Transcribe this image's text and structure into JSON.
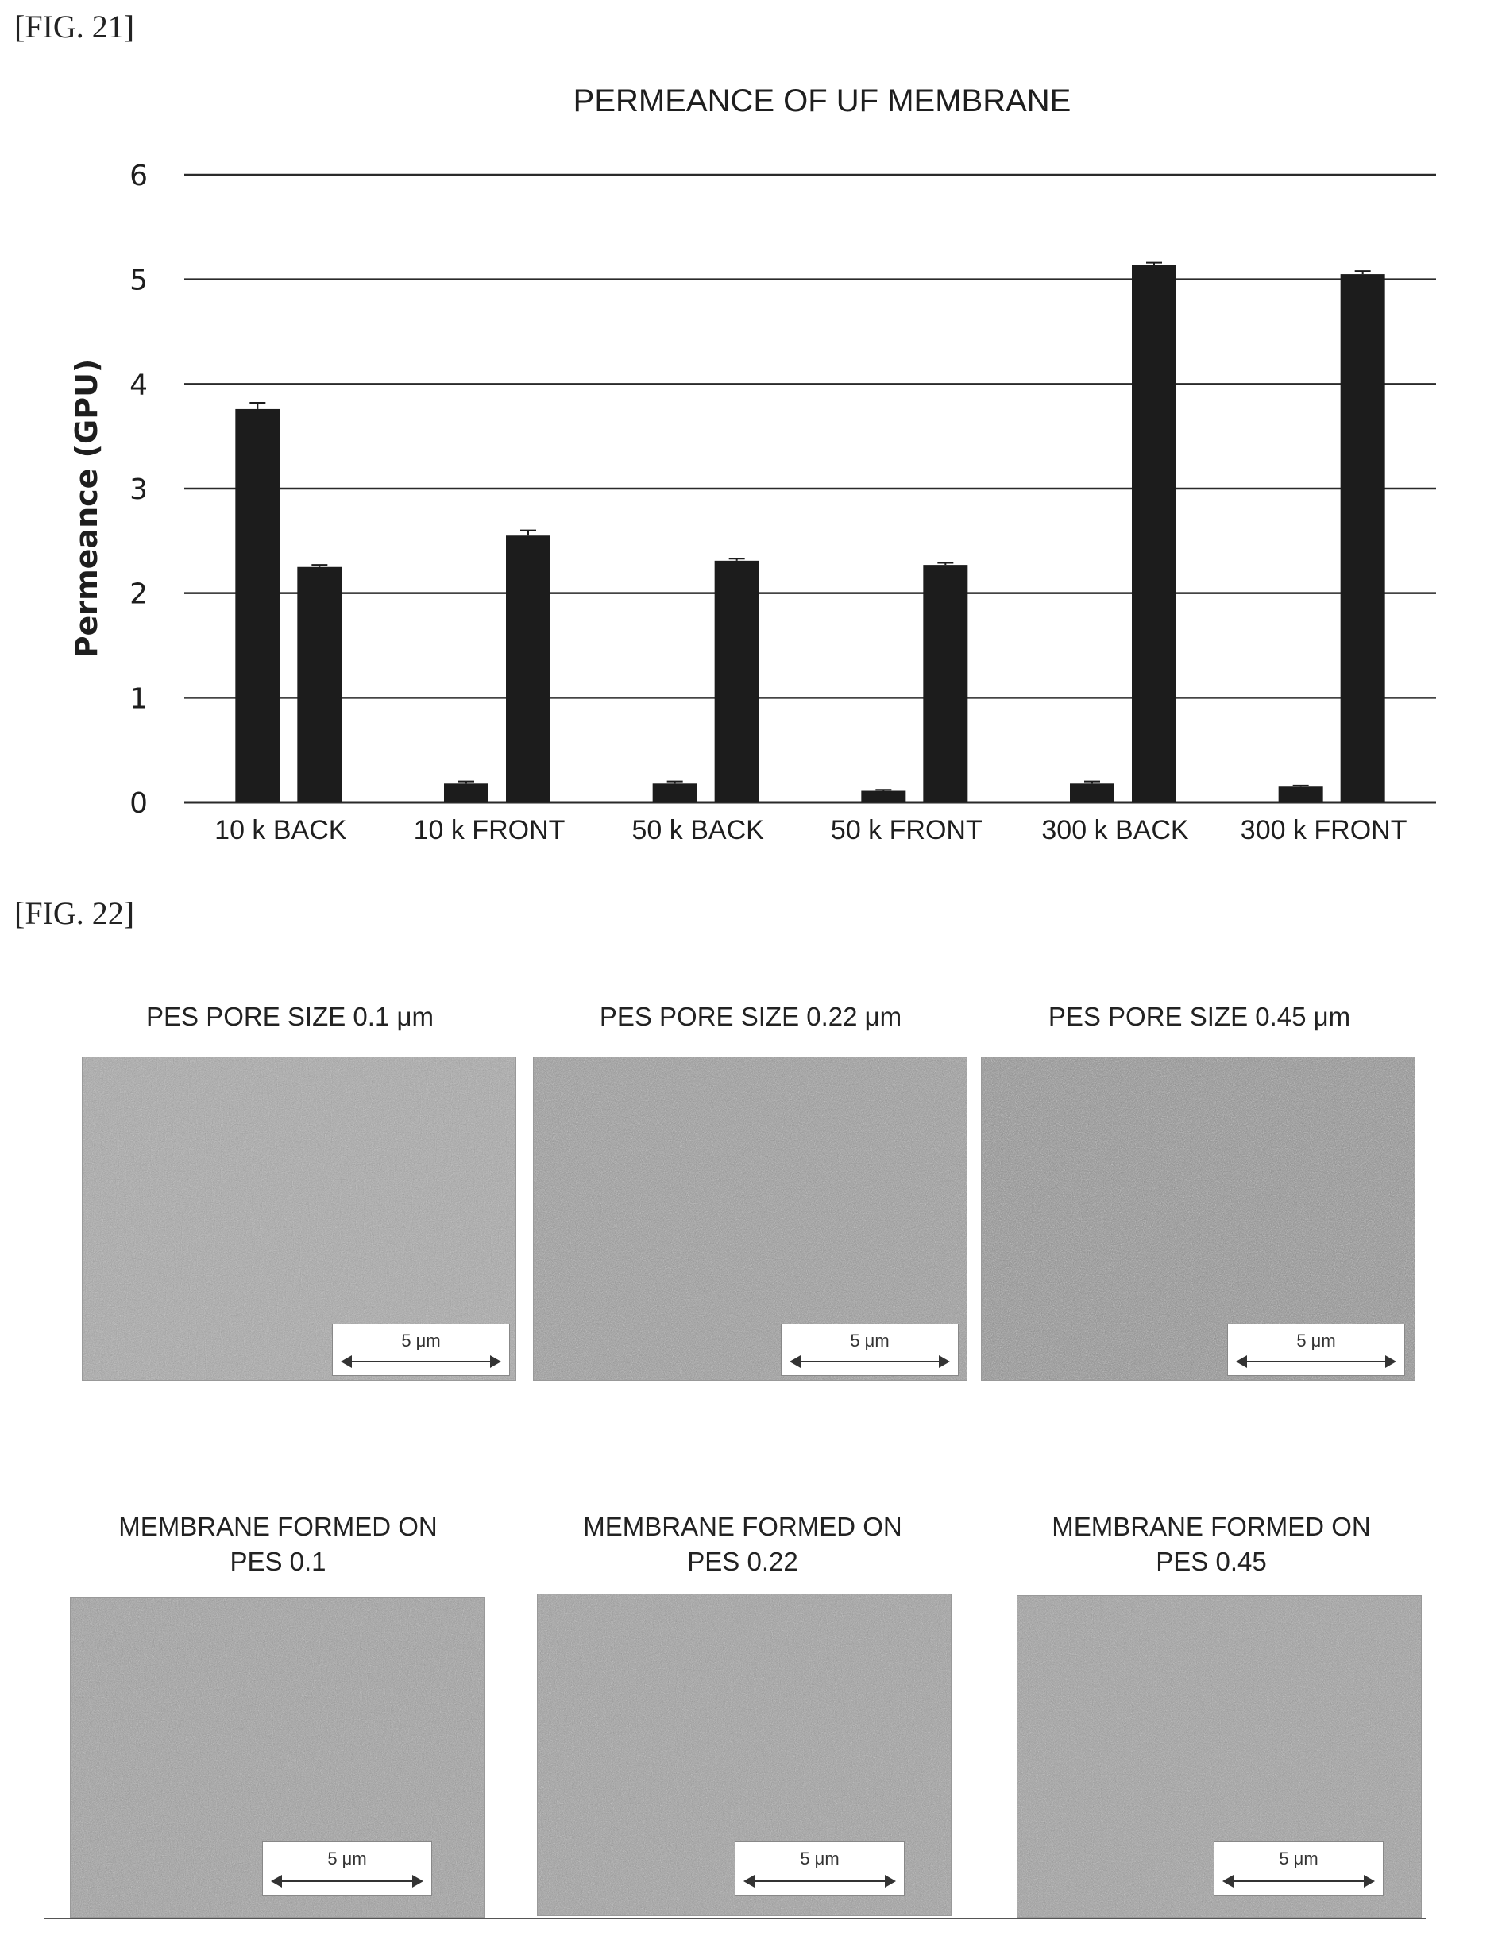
{
  "fig21": {
    "label": "[FIG. 21]"
  },
  "fig22": {
    "label": "[FIG. 22]"
  },
  "chart_data": {
    "type": "bar",
    "title": "PERMEANCE OF UF MEMBRANE",
    "ylabel": "Permeance (GPU)",
    "xlabel": "",
    "ylim": [
      0,
      6
    ],
    "yticks": [
      0,
      1,
      2,
      3,
      4,
      5,
      6
    ],
    "grid": true,
    "categories": [
      "10 k BACK",
      "10 k FRONT",
      "50 k BACK",
      "50 k FRONT",
      "300 k BACK",
      "300 k FRONT"
    ],
    "series": [
      {
        "values": [
          3.76,
          0.18,
          0.18,
          0.11,
          0.18,
          0.15
        ],
        "errors": [
          0.06,
          0.02,
          0.02,
          0.01,
          0.02,
          0.01
        ]
      },
      {
        "values": [
          2.25,
          2.55,
          2.31,
          2.27,
          5.14,
          5.05
        ],
        "errors": [
          0.02,
          0.05,
          0.02,
          0.02,
          0.02,
          0.03
        ]
      }
    ],
    "bar_color": "#1c1c1c"
  },
  "sem": {
    "top_row": [
      {
        "caption_line1": "PES PORE SIZE 0.1 μm",
        "caption_line2": "",
        "scale": "5 μm",
        "shade": 0.35
      },
      {
        "caption_line1": "PES PORE SIZE 0.22 μm",
        "caption_line2": "",
        "scale": "5 μm",
        "shade": 0.5
      },
      {
        "caption_line1": "PES PORE SIZE 0.45 μm",
        "caption_line2": "",
        "scale": "5 μm",
        "shade": 0.62
      }
    ],
    "bottom_row": [
      {
        "caption_line1": "MEMBRANE FORMED ON",
        "caption_line2": "PES 0.1",
        "scale": "5 μm",
        "shade": 0.45
      },
      {
        "caption_line1": "MEMBRANE FORMED ON",
        "caption_line2": "PES 0.22",
        "scale": "5 μm",
        "shade": 0.45
      },
      {
        "caption_line1": "MEMBRANE FORMED ON",
        "caption_line2": "PES 0.45",
        "scale": "5 μm",
        "shade": 0.45
      }
    ]
  }
}
